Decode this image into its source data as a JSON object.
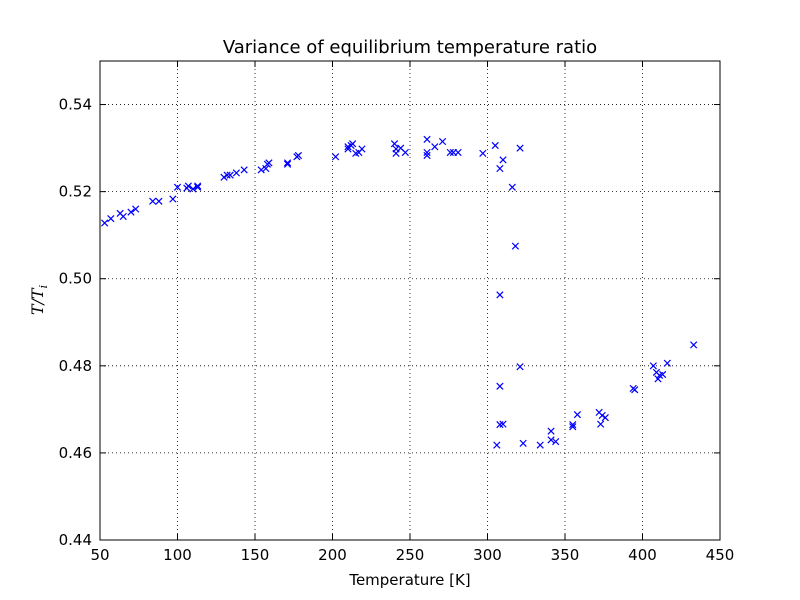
{
  "chart_data": {
    "type": "scatter",
    "title": "Variance of equilibrium temperature ratio",
    "xlabel": "Temperature [K]",
    "ylabel": "T/T_i",
    "xlim": [
      50,
      450
    ],
    "ylim": [
      0.44,
      0.55
    ],
    "xticks": [
      50,
      100,
      150,
      200,
      250,
      300,
      350,
      400,
      450
    ],
    "yticks": [
      0.44,
      0.46,
      0.48,
      0.5,
      0.52,
      0.54
    ],
    "xtick_labels": [
      "50",
      "100",
      "150",
      "200",
      "250",
      "300",
      "350",
      "400",
      "450"
    ],
    "ytick_labels": [
      "0.44",
      "0.46",
      "0.48",
      "0.50",
      "0.52",
      "0.54"
    ],
    "grid": true,
    "marker": "x",
    "color": "#0000ff",
    "series": [
      {
        "points": [
          [
            53,
            0.5128
          ],
          [
            57,
            0.5138
          ],
          [
            63,
            0.515
          ],
          [
            65,
            0.5143
          ],
          [
            70,
            0.5153
          ],
          [
            73,
            0.516
          ],
          [
            84,
            0.5178
          ],
          [
            88,
            0.5178
          ],
          [
            97,
            0.5183
          ],
          [
            100,
            0.521
          ],
          [
            106,
            0.5208
          ],
          [
            107,
            0.5213
          ],
          [
            110,
            0.5206
          ],
          [
            113,
            0.521
          ],
          [
            113,
            0.5213
          ],
          [
            130,
            0.5233
          ],
          [
            132,
            0.5238
          ],
          [
            134,
            0.5238
          ],
          [
            138,
            0.5243
          ],
          [
            143,
            0.525
          ],
          [
            154,
            0.525
          ],
          [
            157,
            0.5253
          ],
          [
            158,
            0.5263
          ],
          [
            159,
            0.5266
          ],
          [
            171,
            0.5263
          ],
          [
            171,
            0.5266
          ],
          [
            177,
            0.528
          ],
          [
            178,
            0.5283
          ],
          [
            202,
            0.528
          ],
          [
            210,
            0.5298
          ],
          [
            210,
            0.5303
          ],
          [
            212,
            0.5306
          ],
          [
            213,
            0.531
          ],
          [
            215,
            0.5288
          ],
          [
            217,
            0.529
          ],
          [
            219,
            0.5298
          ],
          [
            240,
            0.531
          ],
          [
            241,
            0.5288
          ],
          [
            241,
            0.5298
          ],
          [
            244,
            0.53
          ],
          [
            247,
            0.529
          ],
          [
            261,
            0.532
          ],
          [
            261,
            0.529
          ],
          [
            261,
            0.5283
          ],
          [
            266,
            0.5303
          ],
          [
            271,
            0.5315
          ],
          [
            276,
            0.529
          ],
          [
            278,
            0.529
          ],
          [
            281,
            0.529
          ],
          [
            297,
            0.5288
          ],
          [
            305,
            0.5306
          ],
          [
            308,
            0.5253
          ],
          [
            310,
            0.5273
          ],
          [
            316,
            0.521
          ],
          [
            318,
            0.5075
          ],
          [
            321,
            0.53
          ],
          [
            308,
            0.4963
          ],
          [
            308,
            0.4753
          ],
          [
            321,
            0.4798
          ],
          [
            306,
            0.4618
          ],
          [
            308,
            0.4665
          ],
          [
            310,
            0.4666
          ],
          [
            323,
            0.4622
          ],
          [
            334,
            0.4618
          ],
          [
            341,
            0.465
          ],
          [
            341,
            0.463
          ],
          [
            344,
            0.4626
          ],
          [
            355,
            0.466
          ],
          [
            355,
            0.4665
          ],
          [
            358,
            0.4688
          ],
          [
            372,
            0.4693
          ],
          [
            373,
            0.4666
          ],
          [
            374,
            0.4686
          ],
          [
            376,
            0.4681
          ],
          [
            394,
            0.4748
          ],
          [
            395,
            0.4745
          ],
          [
            407,
            0.48
          ],
          [
            409,
            0.4785
          ],
          [
            410,
            0.477
          ],
          [
            411,
            0.4778
          ],
          [
            413,
            0.478
          ],
          [
            416,
            0.4806
          ],
          [
            433,
            0.4848
          ]
        ]
      }
    ]
  }
}
